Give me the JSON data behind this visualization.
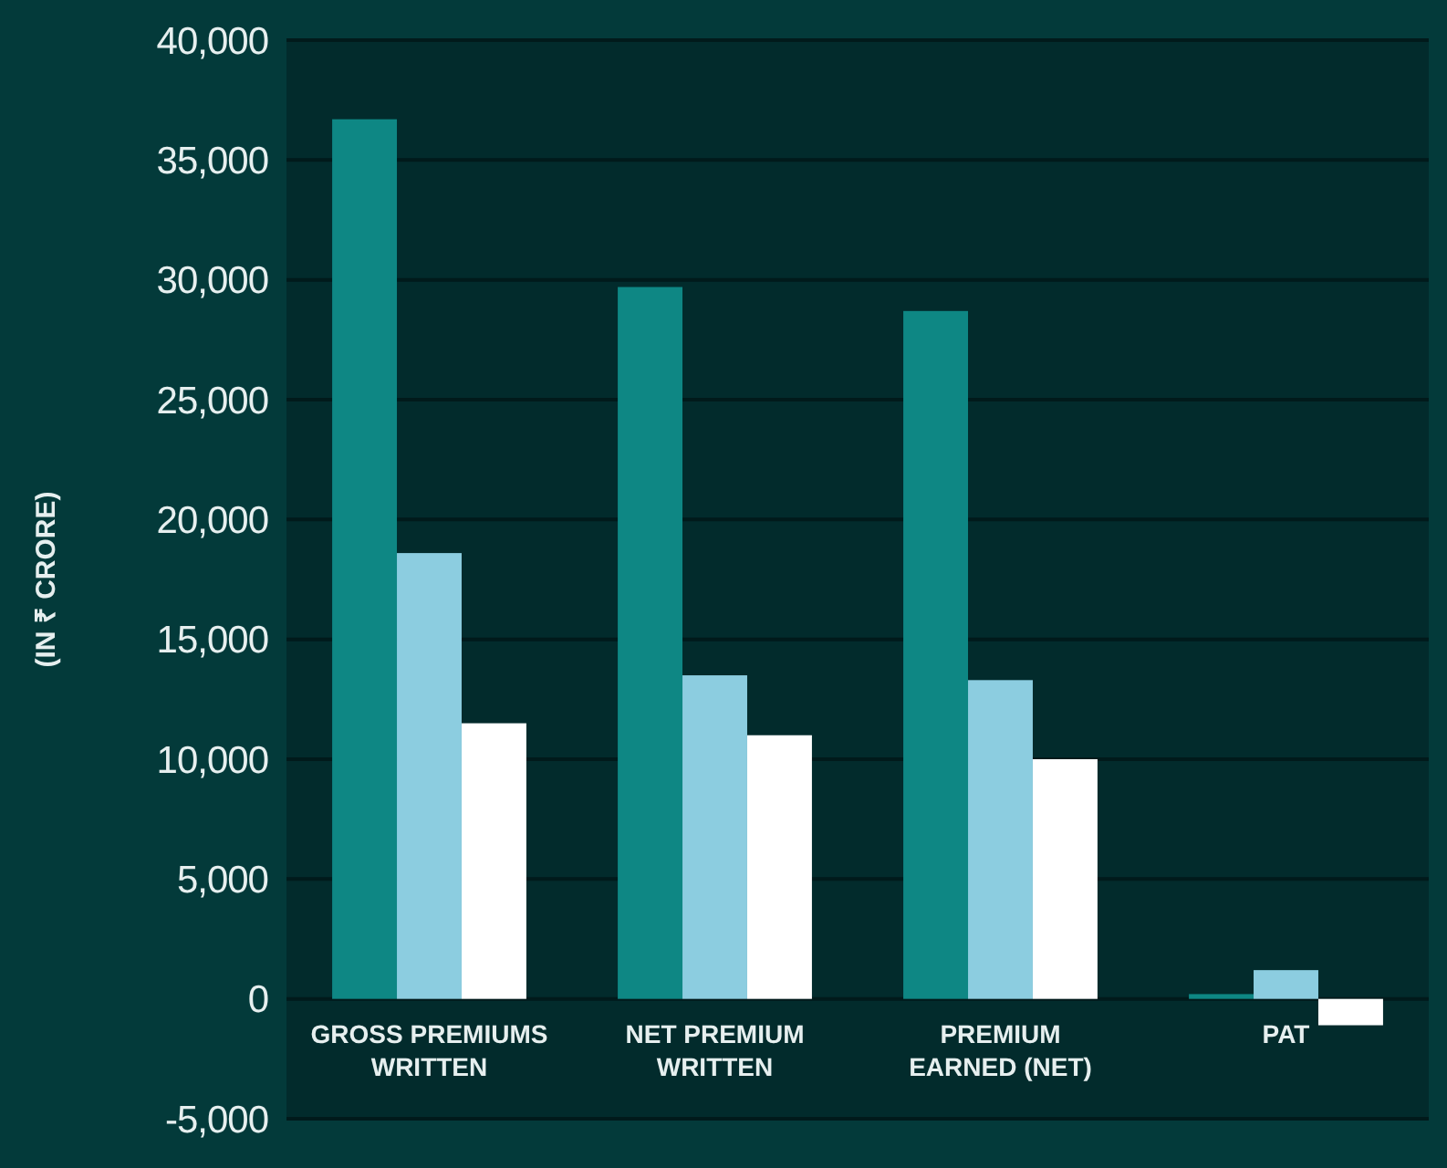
{
  "chart_data": {
    "type": "bar",
    "ylabel": "(IN ₹ CRORE)",
    "categories": [
      "GROSS PREMIUMS\nWRITTEN",
      "NET PREMIUM\nWRITTEN",
      "PREMIUM\nEARNED (NET)",
      "PAT"
    ],
    "series": [
      {
        "color": "#0e8784",
        "values": [
          36700,
          29700,
          28700,
          200
        ]
      },
      {
        "color": "#8ccde0",
        "values": [
          18600,
          13500,
          13300,
          1200
        ]
      },
      {
        "color": "#ffffff",
        "values": [
          11500,
          11000,
          10000,
          -1100
        ]
      }
    ],
    "ylim": [
      -5000,
      40000
    ],
    "yticks": [
      {
        "value": -5000,
        "label": "-5,000"
      },
      {
        "value": 0,
        "label": "0"
      },
      {
        "value": 5000,
        "label": "5,000"
      },
      {
        "value": 10000,
        "label": "10,000"
      },
      {
        "value": 15000,
        "label": "15,000"
      },
      {
        "value": 20000,
        "label": "20,000"
      },
      {
        "value": 25000,
        "label": "25,000"
      },
      {
        "value": 30000,
        "label": "30,000"
      },
      {
        "value": 35000,
        "label": "35,000"
      },
      {
        "value": 40000,
        "label": "40,000"
      }
    ],
    "grid": "y"
  }
}
